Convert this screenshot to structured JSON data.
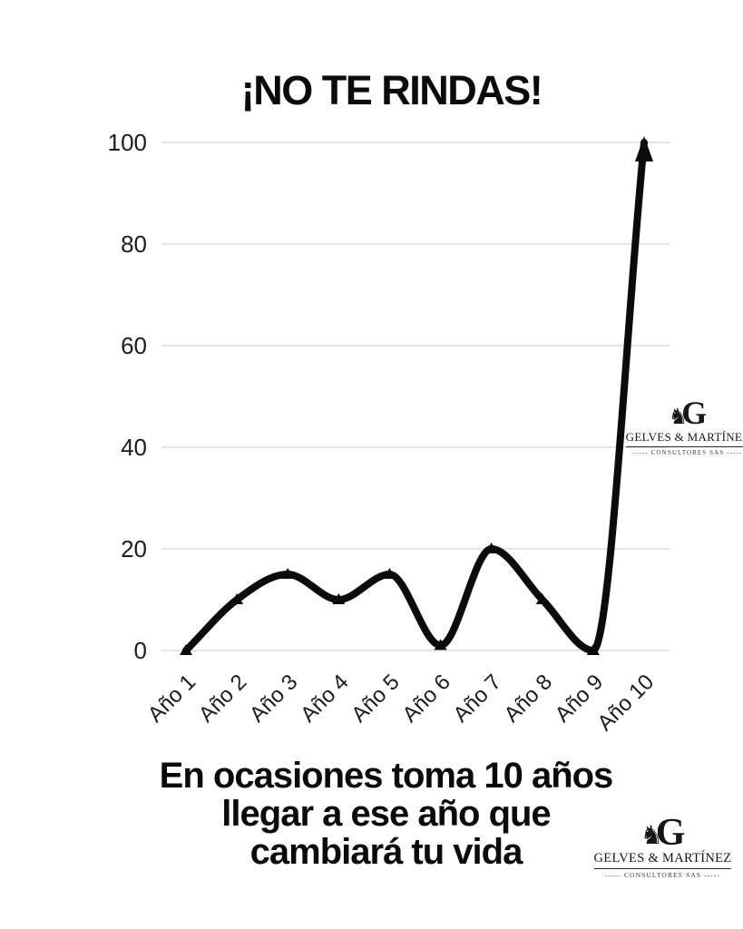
{
  "page": {
    "title": "¡NO TE RINDAS!",
    "caption_lines": [
      "En ocasiones toma 10 años",
      "llegar a ese año que",
      "cambiará tu vida"
    ]
  },
  "logo": {
    "knight_icon": "♞",
    "monogram": "G",
    "name": "GELVES & MARTÍNEZ",
    "subtitle": "----- CONSULTORES SAS -----"
  },
  "chart_data": {
    "type": "line",
    "title": "¡NO TE RINDAS!",
    "categories": [
      "Año 1",
      "Año 2",
      "Año 3",
      "Año 4",
      "Año 5",
      "Año 6",
      "Año 7",
      "Año 8",
      "Año 9",
      "Año 10"
    ],
    "values": [
      0,
      10,
      15,
      10,
      15,
      1,
      20,
      10,
      0,
      100
    ],
    "xlabel": "",
    "ylabel": "",
    "ylim": [
      0,
      100
    ],
    "y_ticks": [
      0,
      20,
      40,
      60,
      80,
      100
    ],
    "grid": "horizontal",
    "legend": "none",
    "marker": "triangle-up",
    "end_arrow": true,
    "line_color": "#0b0b0b",
    "grid_color": "#e4e4e4"
  }
}
